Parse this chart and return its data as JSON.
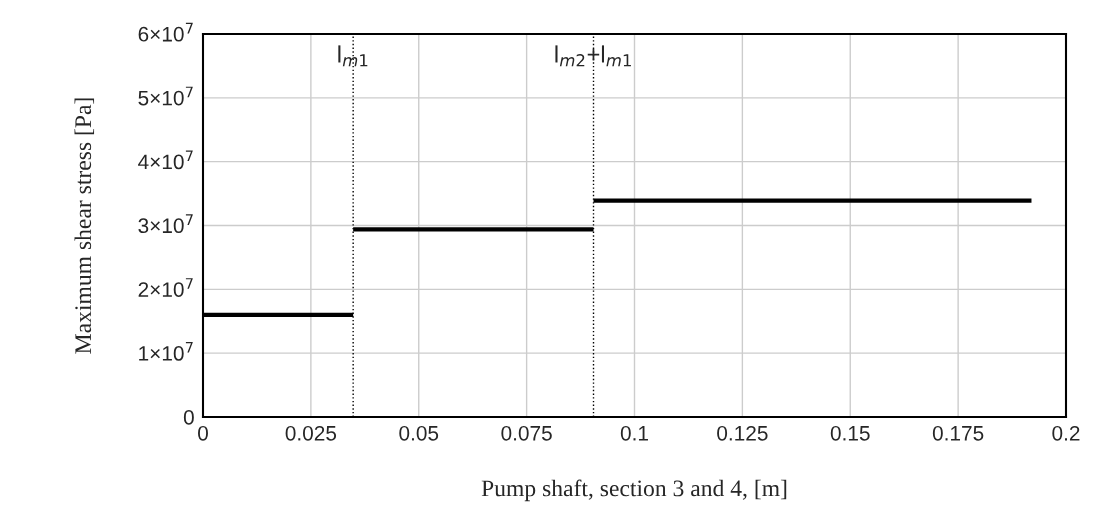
{
  "chart_data": {
    "type": "line",
    "xlabel": "Pump shaft, section 3 and 4, [m]",
    "ylabel": "Maximum shear stress [Pa]",
    "series": [
      {
        "color": "#000000",
        "x": [
          0,
          0.0348
        ],
        "values": [
          16000000,
          16000000
        ]
      },
      {
        "color": "#000000",
        "x": [
          0.0348,
          0.0905
        ],
        "values": [
          29400000,
          29400000
        ]
      },
      {
        "color": "#000000",
        "x": [
          0.0905,
          0.192
        ],
        "values": [
          33900000,
          33900000
        ]
      }
    ],
    "xlim": [
      0,
      0.2
    ],
    "xticks": [
      0,
      0.025,
      0.05,
      0.075,
      0.1,
      0.125,
      0.15,
      0.175,
      0.2
    ],
    "ylim": [
      0,
      60000000
    ],
    "yticks": [
      0,
      {
        "value": 10000000,
        "label": "1×10$^{7}$"
      },
      {
        "value": 20000000,
        "label": "2×10$^{7}$"
      },
      {
        "value": 30000000,
        "label": "3×10$^{7}$"
      },
      {
        "value": 40000000,
        "label": "4×10$^{7}$"
      },
      {
        "value": 50000000,
        "label": "5×10$^{7}$"
      },
      {
        "value": 60000000,
        "label": "6×10$^{7}$"
      }
    ],
    "ref_lines": [
      {
        "axis": "x",
        "value": 0.0348,
        "label": "l$_{m1}$",
        "color": "#000000",
        "line_style": "dotted"
      },
      {
        "axis": "x",
        "value": 0.0905,
        "label": "l$_{m2}$+l$_{m1}$",
        "color": "#000000",
        "line_style": "dotted"
      }
    ],
    "grid": true,
    "marker": "none",
    "line_style": "solid"
  }
}
